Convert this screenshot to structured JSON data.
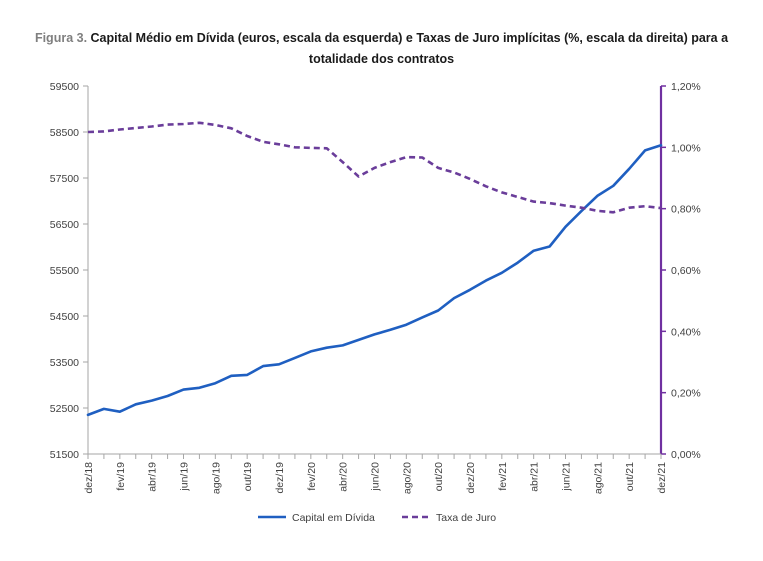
{
  "figure": {
    "label": "Figura 3.",
    "title": "Capital Médio em Dívida (euros, escala da esquerda) e Taxas de Juro implícitas (%, escala da direita) para a totalidade dos contratos"
  },
  "colors": {
    "capital": "#1f5fc1",
    "juro": "#6a3d9a",
    "axis_left": "#a6a6a6",
    "axis_right": "#7030a0",
    "text": "#404040"
  },
  "chart_data": {
    "type": "line",
    "x": [
      "dez/18",
      "jan/19",
      "fev/19",
      "mar/19",
      "abr/19",
      "mai/19",
      "jun/19",
      "jul/19",
      "ago/19",
      "set/19",
      "out/19",
      "nov/19",
      "dez/19",
      "jan/20",
      "fev/20",
      "mar/20",
      "abr/20",
      "mai/20",
      "jun/20",
      "jul/20",
      "ago/20",
      "set/20",
      "out/20",
      "nov/20",
      "dez/20",
      "jan/21",
      "fev/21",
      "mar/21",
      "abr/21",
      "mai/21",
      "jun/21",
      "jul/21",
      "ago/21",
      "set/21",
      "out/21",
      "nov/21",
      "dez/21"
    ],
    "x_tick_labels": [
      "dez/18",
      "fev/19",
      "abr/19",
      "jun/19",
      "ago/19",
      "out/19",
      "dez/19",
      "fev/20",
      "abr/20",
      "jun/20",
      "ago/20",
      "out/20",
      "dez/20",
      "fev/21",
      "abr/21",
      "jun/21",
      "ago/21",
      "out/21",
      "dez/21"
    ],
    "y_left": {
      "min": 51500,
      "max": 59500,
      "ticks": [
        "51500",
        "52500",
        "53500",
        "54500",
        "55500",
        "56500",
        "57500",
        "58500",
        "59500"
      ]
    },
    "y_right": {
      "min": 0,
      "max": 1.2,
      "ticks": [
        "0,00%",
        "0,20%",
        "0,40%",
        "0,60%",
        "0,80%",
        "1,00%",
        "1,20%"
      ]
    },
    "series": [
      {
        "name": "Capital em Dívida",
        "axis": "left",
        "style": "solid",
        "values": [
          52350,
          52480,
          52420,
          52580,
          52660,
          52760,
          52900,
          52940,
          53040,
          53200,
          53220,
          53410,
          53450,
          53590,
          53730,
          53810,
          53860,
          53980,
          54100,
          54200,
          54310,
          54470,
          54620,
          54890,
          55070,
          55270,
          55440,
          55660,
          55920,
          56010,
          56440,
          56780,
          57110,
          57330,
          57700,
          58100,
          58210
        ]
      },
      {
        "name": "Taxa de Juro",
        "axis": "right",
        "style": "dashed",
        "values": [
          1.05,
          1.052,
          1.058,
          1.063,
          1.068,
          1.074,
          1.076,
          1.08,
          1.073,
          1.062,
          1.037,
          1.018,
          1.01,
          1.0,
          0.998,
          0.997,
          0.952,
          0.905,
          0.933,
          0.952,
          0.968,
          0.967,
          0.933,
          0.918,
          0.897,
          0.873,
          0.853,
          0.838,
          0.823,
          0.818,
          0.81,
          0.803,
          0.793,
          0.788,
          0.803,
          0.808,
          0.802
        ]
      }
    ],
    "legend_position": "bottom",
    "grid": false
  }
}
